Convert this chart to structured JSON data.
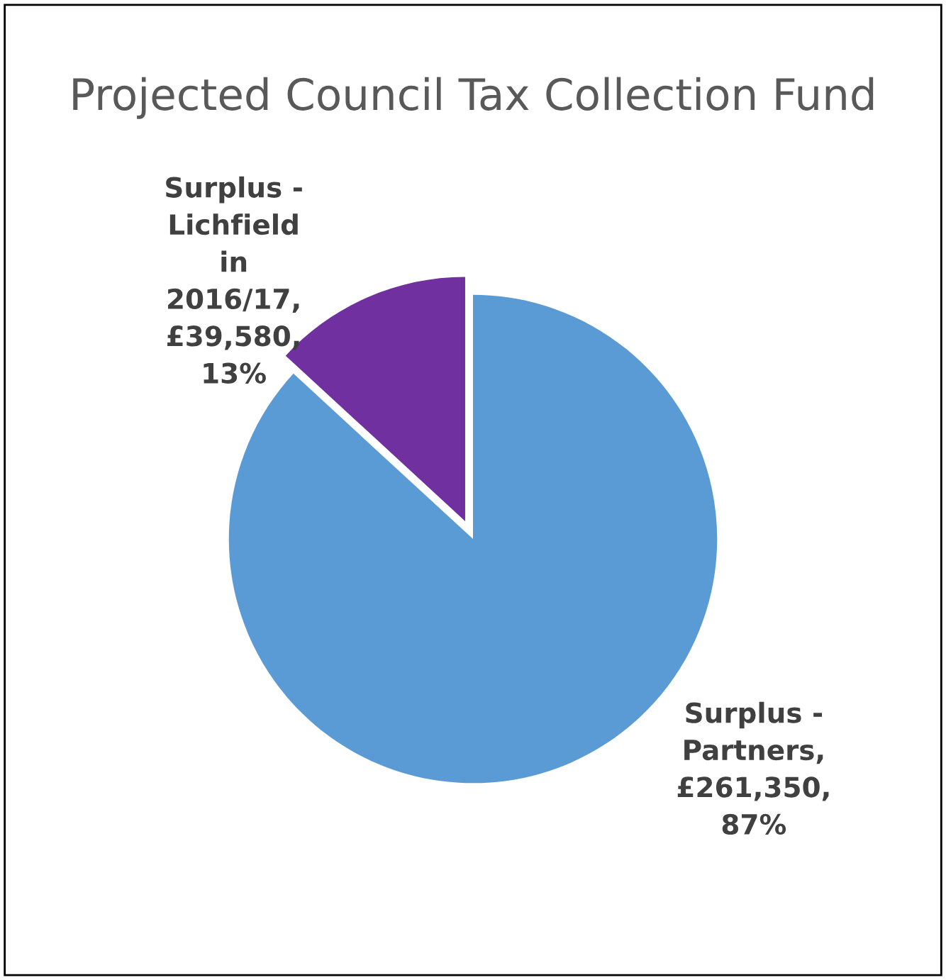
{
  "chart_data": {
    "type": "pie",
    "title": "Projected Council Tax Collection Fund",
    "categories": [
      "Surplus - Partners, £261,350, 87%",
      "Surplus - Lichfield in 2016/17, £39,580, 13%"
    ],
    "values": [
      261350,
      39580
    ],
    "colors": [
      "#5b9bd5",
      "#7030a0"
    ],
    "legend": false
  }
}
